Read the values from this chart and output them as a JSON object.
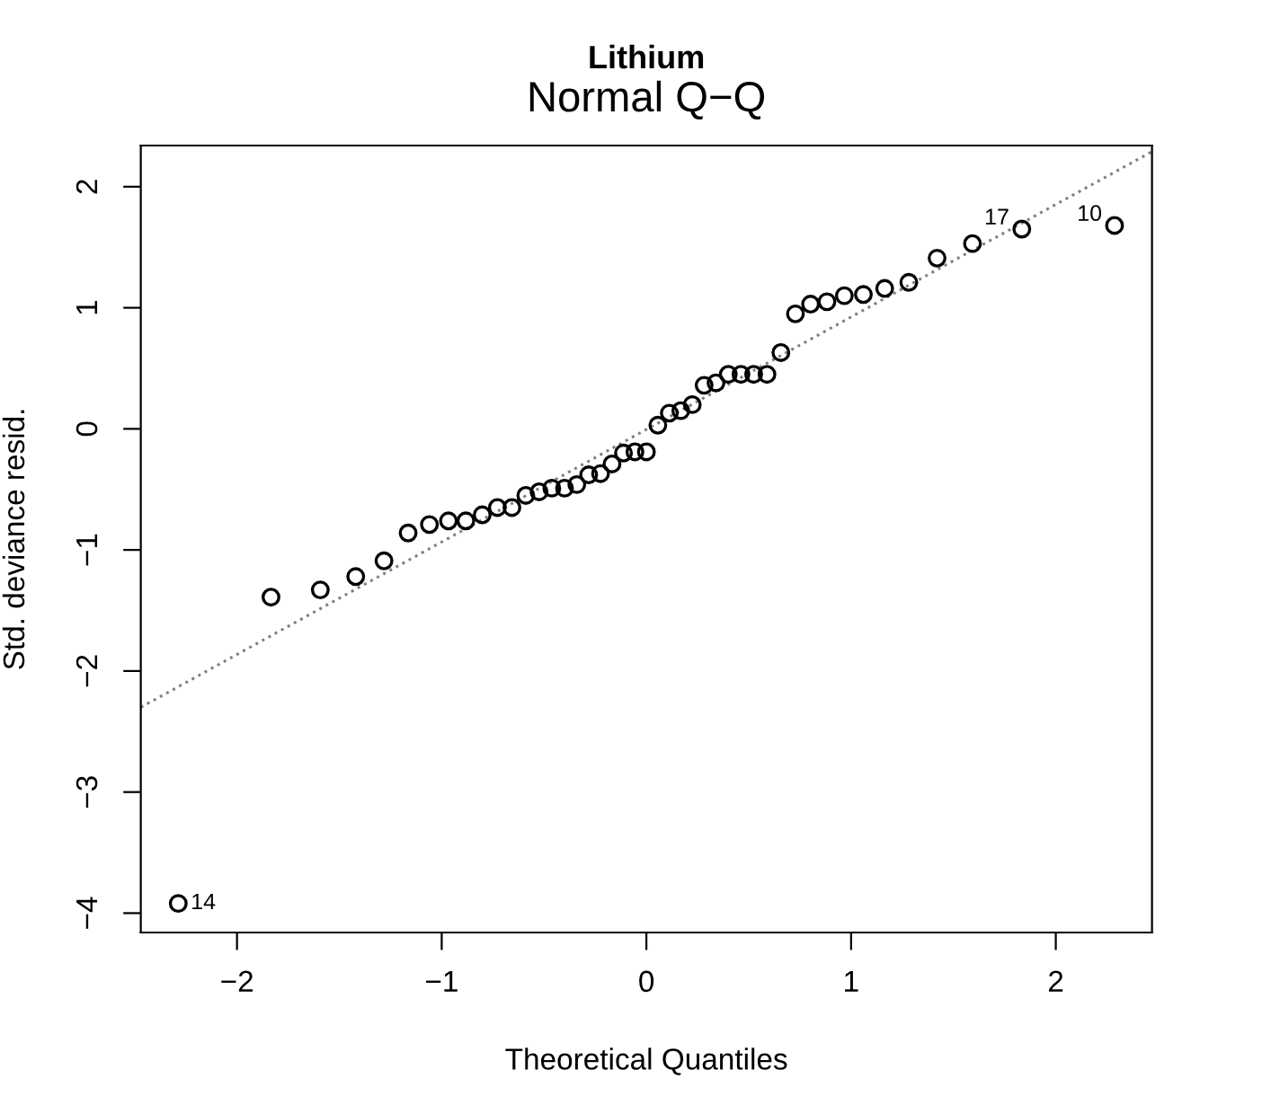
{
  "chart_data": {
    "type": "scatter",
    "title": "Lithium",
    "subtitle": "Normal Q−Q",
    "xlabel": "Theoretical Quantiles",
    "ylabel": "Std. deviance resid.",
    "series": [
      {
        "color": "#000000",
        "marker": "circle",
        "x": [
          -2.287,
          -1.834,
          -1.593,
          -1.42,
          -1.282,
          -1.164,
          -1.06,
          -0.967,
          -0.882,
          -0.802,
          -0.728,
          -0.657,
          -0.589,
          -0.524,
          -0.462,
          -0.4,
          -0.34,
          -0.282,
          -0.224,
          -0.168,
          -0.112,
          -0.056,
          0.0,
          0.056,
          0.112,
          0.168,
          0.224,
          0.282,
          0.34,
          0.4,
          0.462,
          0.524,
          0.589,
          0.657,
          0.728,
          0.802,
          0.882,
          0.967,
          1.06,
          1.164,
          1.282,
          1.42,
          1.593,
          1.834,
          2.287
        ],
        "values": [
          -3.92,
          -1.39,
          -1.33,
          -1.22,
          -1.09,
          -0.86,
          -0.79,
          -0.76,
          -0.76,
          -0.71,
          -0.65,
          -0.65,
          -0.55,
          -0.52,
          -0.49,
          -0.49,
          -0.46,
          -0.38,
          -0.37,
          -0.29,
          -0.2,
          -0.19,
          -0.19,
          0.03,
          0.13,
          0.15,
          0.2,
          0.36,
          0.38,
          0.45,
          0.45,
          0.45,
          0.45,
          0.63,
          0.95,
          1.03,
          1.05,
          1.1,
          1.11,
          1.16,
          1.21,
          1.41,
          1.53,
          1.65,
          1.68
        ]
      },
      {
        "type": "line",
        "color": "#808080",
        "line_style": "dotted",
        "x": [
          -2.47,
          2.47
        ],
        "values": [
          -2.3,
          2.29
        ]
      }
    ],
    "annotations": [
      {
        "text": "14",
        "x": -2.287,
        "y": -3.92
      },
      {
        "text": "17",
        "x": 1.834,
        "y": 1.65
      },
      {
        "text": "10",
        "x": 2.287,
        "y": 1.68
      }
    ],
    "xlim": [
      -2.47,
      2.47
    ],
    "ylim": [
      -4.16,
      2.34
    ],
    "xticks": [
      {
        "value": -2,
        "label": "−2"
      },
      {
        "value": -1,
        "label": "−1"
      },
      0,
      1,
      2
    ],
    "yticks": [
      {
        "value": -4,
        "label": "−4"
      },
      {
        "value": -3,
        "label": "−3"
      },
      {
        "value": -2,
        "label": "−2"
      },
      {
        "value": -1,
        "label": "−1"
      },
      0,
      1,
      2
    ],
    "grid": false,
    "legend": false
  }
}
